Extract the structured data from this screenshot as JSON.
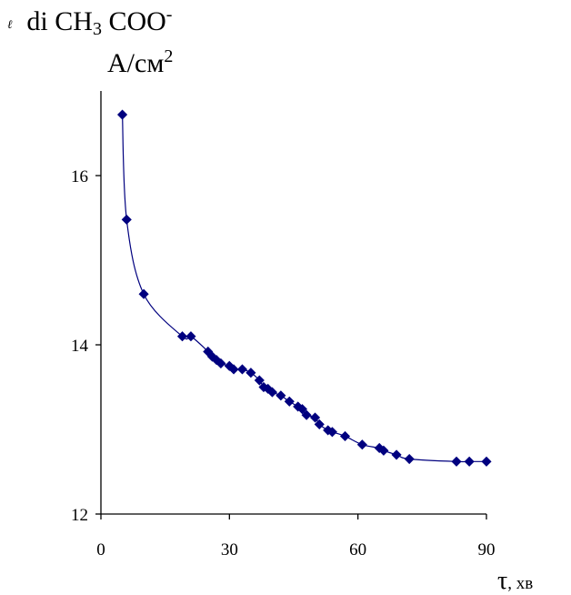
{
  "chart_data": {
    "type": "line",
    "y_label": {
      "prefix": "ℓ",
      "main": "di CH",
      "sub": "3",
      "rest": " COO",
      "sup": "-"
    },
    "y_unit": {
      "main": "А/см",
      "sup": "2"
    },
    "x_label": {
      "symbol": "τ",
      "rest": ", хв"
    },
    "xlim": [
      0,
      90
    ],
    "ylim": [
      12,
      17
    ],
    "x_ticks": [
      "0",
      "30",
      "60",
      "90"
    ],
    "y_ticks": [
      "12",
      "14",
      "16"
    ],
    "grid": false,
    "series": [
      {
        "color": "#00007f",
        "marker": "diamond",
        "x": [
          5,
          6,
          10,
          19,
          21,
          25,
          26,
          27,
          28,
          30,
          31,
          33,
          35,
          37,
          38,
          39,
          40,
          42,
          44,
          46,
          47,
          48,
          50,
          51,
          53,
          54,
          57,
          61,
          65,
          66,
          69,
          72,
          83,
          86,
          90
        ],
        "y": [
          16.72,
          15.48,
          14.6,
          14.1,
          14.1,
          13.92,
          13.86,
          13.82,
          13.78,
          13.75,
          13.71,
          13.71,
          13.67,
          13.58,
          13.5,
          13.48,
          13.44,
          13.4,
          13.33,
          13.27,
          13.24,
          13.17,
          13.14,
          13.06,
          12.99,
          12.97,
          12.92,
          12.82,
          12.78,
          12.75,
          12.7,
          12.65,
          12.62,
          12.62,
          12.62
        ]
      }
    ]
  }
}
